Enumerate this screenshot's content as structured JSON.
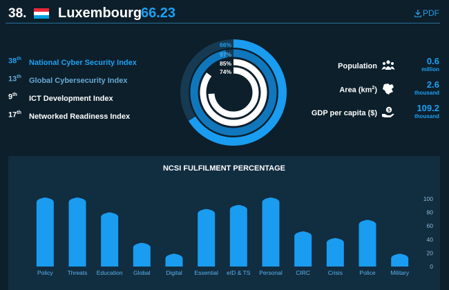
{
  "header": {
    "rank": "38.",
    "country": "Luxembourg",
    "score": "66.23",
    "pdf_label": "PDF",
    "flag_colors": [
      "#ed2939",
      "#ffffff",
      "#00a1de"
    ]
  },
  "indices": [
    {
      "pos": "38",
      "suffix": "th",
      "name": "National Cyber Security Index",
      "color": "#1da1f2"
    },
    {
      "pos": "13",
      "suffix": "th",
      "name": "Global Cybersecurity Index",
      "color": "#6aa9d4"
    },
    {
      "pos": "9",
      "suffix": "th",
      "name": "ICT Development Index",
      "color": "#ffffff"
    },
    {
      "pos": "17",
      "suffix": "th",
      "name": "Networked Readiness Index",
      "color": "#ffffff"
    }
  ],
  "donut": {
    "rings": [
      {
        "label": "66%",
        "value": 66,
        "color": "#1a9cf0",
        "label_color": "#1da1f2"
      },
      {
        "label": "97%",
        "value": 97,
        "color": "#1077bd",
        "label_color": "#4ab0ee"
      },
      {
        "label": "85%",
        "value": 85,
        "color": "#ffffff",
        "label_color": "#ffffff"
      },
      {
        "label": "74%",
        "value": 74,
        "color": "#ffffff",
        "label_color": "#ffffff"
      }
    ]
  },
  "stats": [
    {
      "label": "Population",
      "value": "0.6",
      "unit": "million",
      "icon": "population-icon"
    },
    {
      "label": "Area (km",
      "label_sup": "2",
      "label_end": ")",
      "value": "2.6",
      "unit": "thousand",
      "icon": "map-icon"
    },
    {
      "label": "GDP per capita ($)",
      "value": "109.2",
      "unit": "thousand",
      "icon": "money-hand-icon"
    }
  ],
  "chart_data": {
    "type": "bar",
    "title": "NCSI FULFILMENT PERCENTAGE",
    "categories": [
      "Policy",
      "Threats",
      "Education",
      "Global",
      "Digital",
      "Essential",
      "eID & TS",
      "Personal",
      "CIRC",
      "Crisis",
      "Police",
      "Military"
    ],
    "values": [
      100,
      100,
      78,
      33,
      17,
      83,
      89,
      100,
      50,
      40,
      67,
      17
    ],
    "ylim": [
      0,
      100
    ],
    "yticks": [
      0,
      20,
      40,
      60,
      80,
      100
    ],
    "bar_color": "#1a9cf0"
  }
}
